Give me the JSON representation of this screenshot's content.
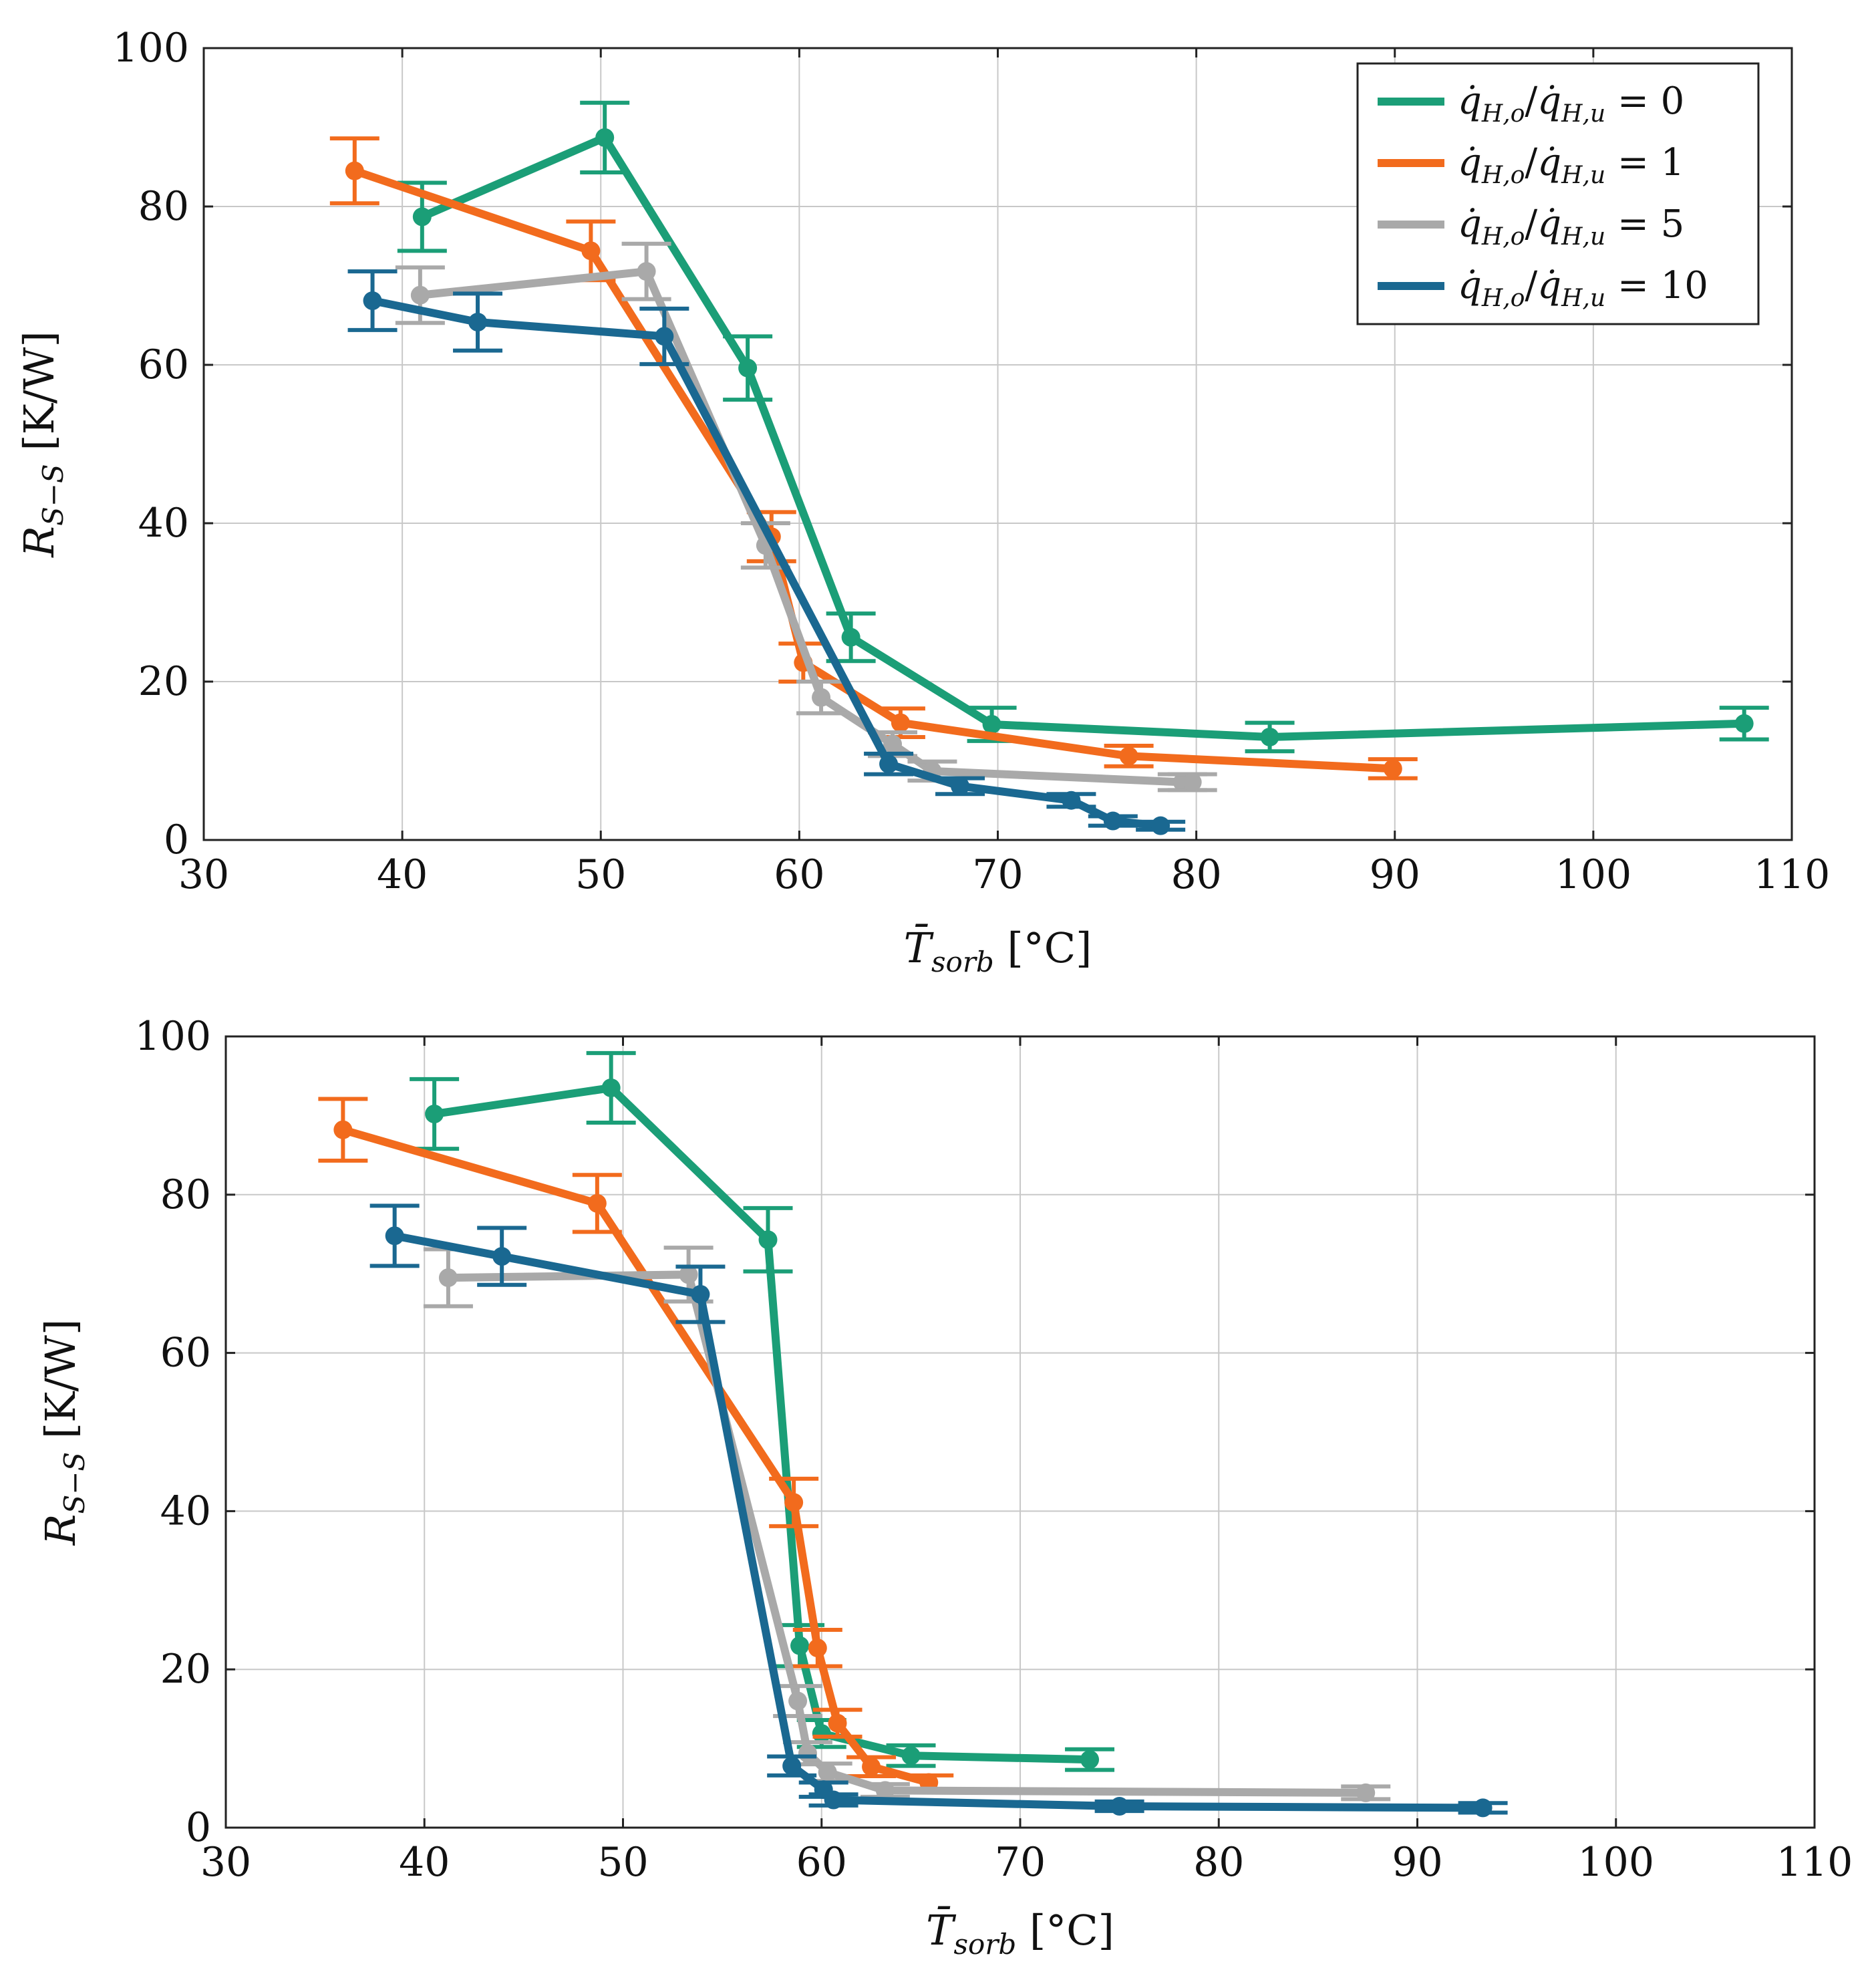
{
  "colors": {
    "green": "#1b9e77",
    "orange": "#f26b1d",
    "gray": "#a9a9a9",
    "blue": "#1a6891"
  },
  "legend_text": {
    "prefix": "q̇",
    "sub_o": "H,o",
    "slash": "/",
    "sub_u": "H,u",
    "eq": "="
  },
  "chart_data": [
    {
      "type": "line",
      "xlabel": "T̄sorb [°C]",
      "ylabel": "RS−S [K/W]",
      "xlim": [
        30,
        110
      ],
      "ylim": [
        0,
        100
      ],
      "xticks": [
        30,
        40,
        50,
        60,
        70,
        80,
        90,
        100,
        110
      ],
      "yticks": [
        0,
        20,
        40,
        60,
        80,
        100
      ],
      "grid": true,
      "legend_position": "top-right",
      "series": [
        {
          "name": "q̇H,o/q̇H,u = 0",
          "legend_value": "0",
          "color": "green",
          "points": [
            {
              "x": 41,
              "y": 78.7,
              "err": 4.3
            },
            {
              "x": 50.2,
              "y": 88.7,
              "err": 4.4
            },
            {
              "x": 57.4,
              "y": 59.6,
              "err": 4.0
            },
            {
              "x": 62.6,
              "y": 25.6,
              "err": 3.0
            },
            {
              "x": 69.7,
              "y": 14.6,
              "err": 2.1
            },
            {
              "x": 83.7,
              "y": 13.0,
              "err": 1.8
            },
            {
              "x": 107.6,
              "y": 14.7,
              "err": 2.0
            }
          ]
        },
        {
          "name": "q̇H,o/q̇H,u = 1",
          "legend_value": "1",
          "color": "orange",
          "points": [
            {
              "x": 37.6,
              "y": 84.5,
              "err": 4.1
            },
            {
              "x": 49.5,
              "y": 74.4,
              "err": 3.7
            },
            {
              "x": 58.6,
              "y": 38.3,
              "err": 3.1
            },
            {
              "x": 60.2,
              "y": 22.4,
              "err": 2.4
            },
            {
              "x": 65.1,
              "y": 14.8,
              "err": 1.8
            },
            {
              "x": 76.6,
              "y": 10.6,
              "err": 1.3
            },
            {
              "x": 89.9,
              "y": 9.0,
              "err": 1.2
            }
          ]
        },
        {
          "name": "q̇H,o/q̇H,u = 5",
          "legend_value": "5",
          "color": "gray",
          "points": [
            {
              "x": 40.9,
              "y": 68.8,
              "err": 3.5
            },
            {
              "x": 52.3,
              "y": 71.8,
              "err": 3.5
            },
            {
              "x": 58.3,
              "y": 37.2,
              "err": 2.8
            },
            {
              "x": 61.1,
              "y": 18.0,
              "err": 2.0
            },
            {
              "x": 64.7,
              "y": 12.1,
              "err": 1.5
            },
            {
              "x": 66.7,
              "y": 8.7,
              "err": 1.2
            },
            {
              "x": 79.3,
              "y": 7.3,
              "err": 1.0
            },
            {
              "x": 79.8,
              "y": 7.3,
              "err": 1.0
            }
          ]
        },
        {
          "name": "q̇H,o/q̇H,u = 10",
          "legend_value": "10",
          "color": "blue",
          "points": [
            {
              "x": 38.5,
              "y": 68.1,
              "err": 3.7
            },
            {
              "x": 43.8,
              "y": 65.4,
              "err": 3.6
            },
            {
              "x": 53.2,
              "y": 63.6,
              "err": 3.5
            },
            {
              "x": 64.5,
              "y": 9.6,
              "err": 1.3
            },
            {
              "x": 68.1,
              "y": 6.8,
              "err": 1.0
            },
            {
              "x": 73.7,
              "y": 5.0,
              "err": 0.8
            },
            {
              "x": 75.8,
              "y": 2.4,
              "err": 0.6
            },
            {
              "x": 78.2,
              "y": 1.8,
              "err": 0.5
            }
          ]
        }
      ]
    },
    {
      "type": "line",
      "xlabel": "T̄sorb [°C]",
      "ylabel": "RS−S [K/W]",
      "xlim": [
        30,
        110
      ],
      "ylim": [
        0,
        100
      ],
      "xticks": [
        30,
        40,
        50,
        60,
        70,
        80,
        90,
        100,
        110
      ],
      "yticks": [
        0,
        20,
        40,
        60,
        80,
        100
      ],
      "grid": true,
      "series": [
        {
          "name": "q̇H,o/q̇H,u = 0",
          "color": "green",
          "points": [
            {
              "x": 40.5,
              "y": 90.2,
              "err": 4.4
            },
            {
              "x": 49.4,
              "y": 93.5,
              "err": 4.4
            },
            {
              "x": 57.3,
              "y": 74.3,
              "err": 4.0
            },
            {
              "x": 58.9,
              "y": 23.0,
              "err": 2.6
            },
            {
              "x": 60.0,
              "y": 11.9,
              "err": 1.7
            },
            {
              "x": 64.5,
              "y": 9.1,
              "err": 1.3
            },
            {
              "x": 73.5,
              "y": 8.6,
              "err": 1.3
            }
          ]
        },
        {
          "name": "q̇H,o/q̇H,u = 1",
          "color": "orange",
          "points": [
            {
              "x": 35.9,
              "y": 88.2,
              "err": 3.9
            },
            {
              "x": 48.7,
              "y": 78.9,
              "err": 3.6
            },
            {
              "x": 58.6,
              "y": 41.1,
              "err": 3.0
            },
            {
              "x": 59.8,
              "y": 22.7,
              "err": 2.3
            },
            {
              "x": 60.8,
              "y": 13.2,
              "err": 1.7
            },
            {
              "x": 62.5,
              "y": 7.7,
              "err": 1.2
            },
            {
              "x": 65.4,
              "y": 5.7,
              "err": 0.9
            }
          ]
        },
        {
          "name": "q̇H,o/q̇H,u = 5",
          "color": "gray",
          "points": [
            {
              "x": 41.2,
              "y": 69.5,
              "err": 3.6
            },
            {
              "x": 53.3,
              "y": 69.9,
              "err": 3.4
            },
            {
              "x": 58.8,
              "y": 16.0,
              "err": 1.9
            },
            {
              "x": 59.3,
              "y": 9.4,
              "err": 1.4
            },
            {
              "x": 60.3,
              "y": 7.0,
              "err": 1.1
            },
            {
              "x": 63.2,
              "y": 4.7,
              "err": 0.8
            },
            {
              "x": 87.4,
              "y": 4.4,
              "err": 0.8
            }
          ]
        },
        {
          "name": "q̇H,o/q̇H,u = 10",
          "color": "blue",
          "points": [
            {
              "x": 38.5,
              "y": 74.8,
              "err": 3.8
            },
            {
              "x": 43.9,
              "y": 72.2,
              "err": 3.6
            },
            {
              "x": 53.9,
              "y": 67.4,
              "err": 3.5
            },
            {
              "x": 58.5,
              "y": 7.8,
              "err": 1.2
            },
            {
              "x": 60.1,
              "y": 4.8,
              "err": 0.9
            },
            {
              "x": 60.6,
              "y": 3.5,
              "err": 0.7
            },
            {
              "x": 75.0,
              "y": 2.7,
              "err": 0.6
            },
            {
              "x": 93.3,
              "y": 2.5,
              "err": 0.6
            }
          ]
        }
      ]
    }
  ]
}
